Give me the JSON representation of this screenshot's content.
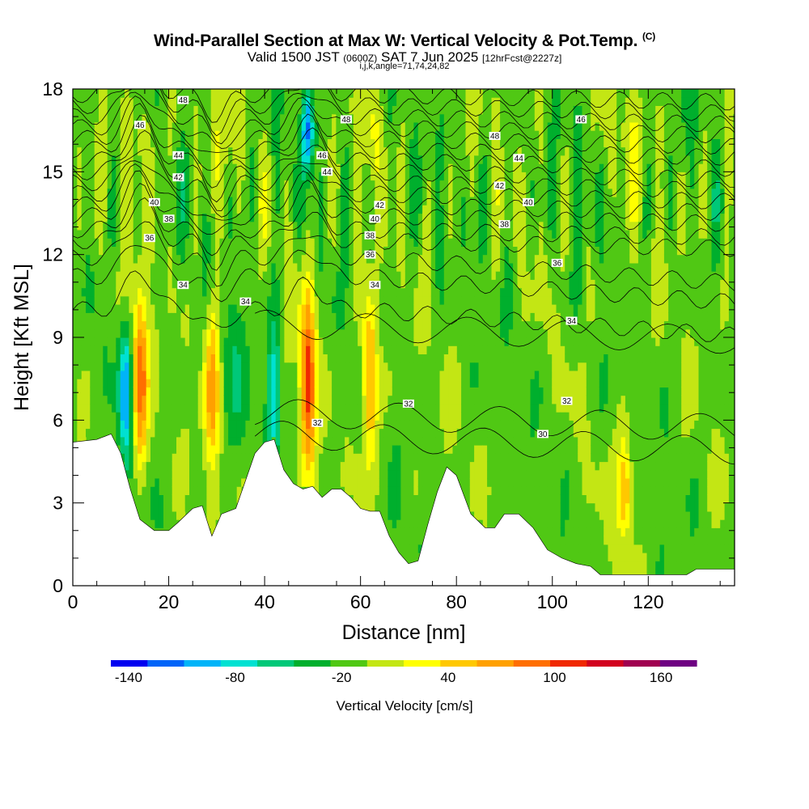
{
  "header": {
    "title": "Wind-Parallel Section at Max W: Vertical Velocity & Pot.Temp.",
    "copyright": "(C)",
    "valid_prefix": "Valid 1500 JST",
    "utc": "(0600Z)",
    "date": "SAT 7 Jun 2025",
    "forecast": "[12hrFcst@2227z]",
    "indices": "i,j,k,angle=71,74,24,82"
  },
  "colorbar": {
    "title": "Vertical Velocity [cm/s]",
    "tick_labels": [
      "-140",
      "-80",
      "-20",
      "40",
      "100",
      "160"
    ],
    "tick_values": [
      -140,
      -80,
      -20,
      40,
      100,
      160
    ],
    "range": [
      -150,
      180
    ],
    "colors": [
      "#0000f0",
      "#0064f8",
      "#00b4f8",
      "#00e1d2",
      "#00c878",
      "#00af2d",
      "#50c814",
      "#c3e614",
      "#ffff00",
      "#ffc800",
      "#ffa000",
      "#ff6e00",
      "#f02800",
      "#d2001e",
      "#a00050",
      "#6e0082"
    ]
  },
  "chart_data": {
    "type": "heatmap",
    "title": "Wind-Parallel Section at Max W: Vertical Velocity & Pot.Temp.",
    "xlabel": "Distance [nm]",
    "ylabel": "Height [Kft MSL]",
    "xlim": [
      0,
      138
    ],
    "ylim": [
      0,
      18
    ],
    "x_ticks": [
      0,
      20,
      40,
      60,
      80,
      100,
      120
    ],
    "y_ticks": [
      0,
      3,
      6,
      9,
      12,
      15,
      18
    ],
    "colorbar_label": "Vertical Velocity [cm/s]",
    "updraft_cores": [
      {
        "x": 14,
        "w_peak": 110
      },
      {
        "x": 29,
        "w_peak": 80
      },
      {
        "x": 49,
        "w_peak": 125
      },
      {
        "x": 62,
        "w_peak": 90
      },
      {
        "x": 115,
        "w_peak": 75
      }
    ],
    "downdraft_cores": [
      {
        "x": 11,
        "w_peak": -90
      },
      {
        "x": 42,
        "w_peak": -75
      },
      {
        "x": 49,
        "w_peak": -130
      }
    ],
    "terrain": {
      "x": [
        0,
        5,
        8,
        10,
        12,
        14,
        17,
        20,
        22,
        25,
        27,
        29,
        31,
        34,
        36,
        38,
        40,
        42,
        44,
        46,
        48,
        50,
        52,
        54,
        56,
        58,
        60,
        62,
        64,
        66,
        68,
        70,
        72,
        74,
        76,
        78,
        80,
        83,
        86,
        88,
        90,
        93,
        96,
        99,
        102,
        105,
        108,
        110,
        112,
        115,
        118,
        122,
        128,
        130,
        135,
        138
      ],
      "height_kft": [
        5.2,
        5.3,
        5.5,
        4.8,
        3.5,
        2.4,
        2.0,
        2.0,
        2.3,
        2.8,
        2.9,
        1.8,
        2.6,
        2.8,
        3.8,
        4.8,
        5.2,
        5.3,
        4.2,
        3.7,
        3.5,
        3.6,
        3.2,
        3.5,
        3.5,
        3.2,
        2.8,
        2.7,
        2.7,
        1.8,
        1.2,
        0.8,
        0.9,
        2.2,
        3.4,
        4.3,
        4.0,
        2.6,
        2.1,
        2.1,
        2.6,
        2.6,
        2.1,
        1.3,
        1.0,
        0.8,
        0.7,
        0.4,
        0.4,
        0.4,
        0.4,
        0.4,
        0.4,
        0.6,
        0.6,
        0.6
      ]
    },
    "theta_contour_labels": [
      {
        "value": "48",
        "x": 23,
        "y": 17.6
      },
      {
        "value": "46",
        "x": 14,
        "y": 16.7
      },
      {
        "value": "44",
        "x": 22,
        "y": 15.6
      },
      {
        "value": "42",
        "x": 22,
        "y": 14.8
      },
      {
        "value": "40",
        "x": 17,
        "y": 13.9
      },
      {
        "value": "38",
        "x": 20,
        "y": 13.3
      },
      {
        "value": "36",
        "x": 16,
        "y": 12.6
      },
      {
        "value": "34",
        "x": 23,
        "y": 10.9
      },
      {
        "value": "34",
        "x": 36,
        "y": 10.3
      },
      {
        "value": "48",
        "x": 57,
        "y": 16.9
      },
      {
        "value": "46",
        "x": 52,
        "y": 15.6
      },
      {
        "value": "44",
        "x": 53,
        "y": 15.0
      },
      {
        "value": "42",
        "x": 64,
        "y": 13.8
      },
      {
        "value": "40",
        "x": 63,
        "y": 13.3
      },
      {
        "value": "38",
        "x": 62,
        "y": 12.7
      },
      {
        "value": "36",
        "x": 62,
        "y": 12.0
      },
      {
        "value": "34",
        "x": 63,
        "y": 10.9
      },
      {
        "value": "32",
        "x": 51,
        "y": 5.9
      },
      {
        "value": "32",
        "x": 70,
        "y": 6.6
      },
      {
        "value": "48",
        "x": 88,
        "y": 16.3
      },
      {
        "value": "46",
        "x": 106,
        "y": 16.9
      },
      {
        "value": "44",
        "x": 93,
        "y": 15.5
      },
      {
        "value": "42",
        "x": 89,
        "y": 14.5
      },
      {
        "value": "40",
        "x": 95,
        "y": 13.9
      },
      {
        "value": "38",
        "x": 90,
        "y": 13.1
      },
      {
        "value": "36",
        "x": 101,
        "y": 11.7
      },
      {
        "value": "34",
        "x": 104,
        "y": 9.6
      },
      {
        "value": "32",
        "x": 103,
        "y": 6.7
      },
      {
        "value": "30",
        "x": 98,
        "y": 5.5
      }
    ]
  }
}
